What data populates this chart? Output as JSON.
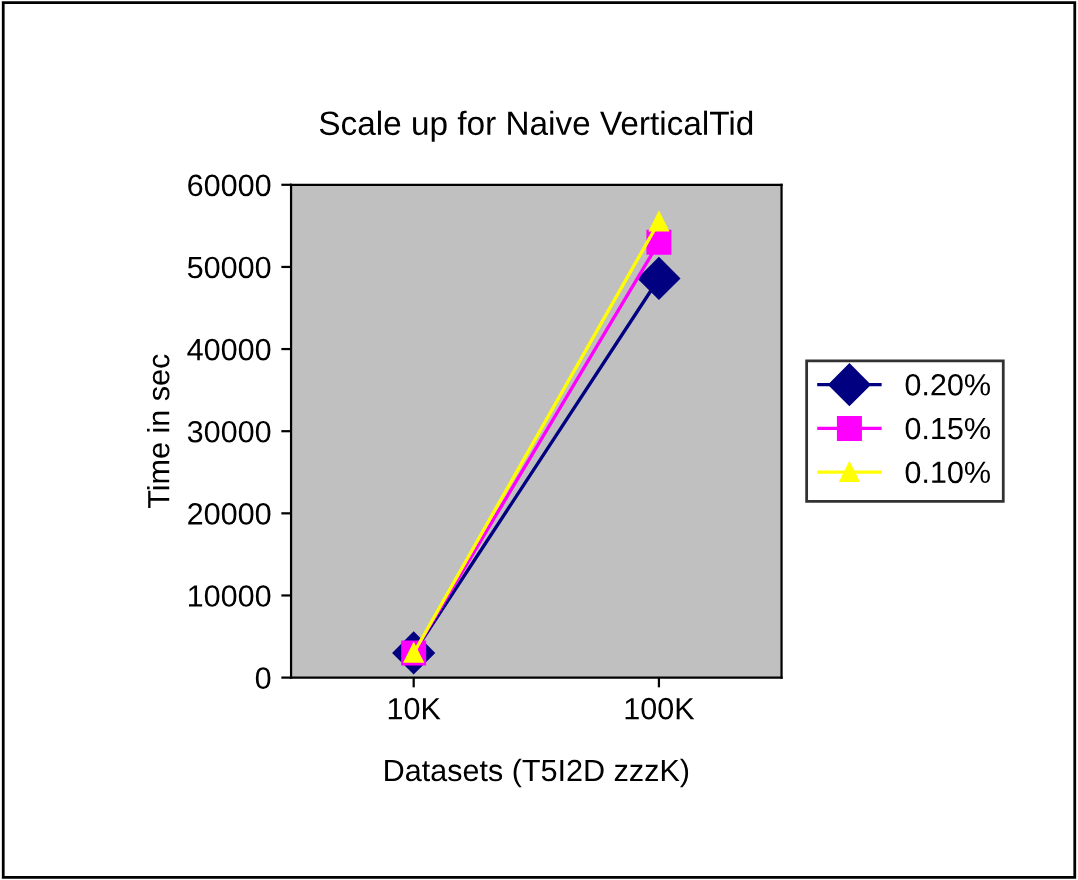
{
  "chart_data": {
    "type": "line",
    "title": "Scale up for Naive VerticalTid",
    "xlabel": "Datasets (T5I2D zzzK)",
    "ylabel": "Time in sec",
    "categories": [
      "10K",
      "100K"
    ],
    "series": [
      {
        "name": "0.20%",
        "color": "#000080",
        "values": [
          3000,
          48600
        ],
        "marker": "diamond"
      },
      {
        "name": "0.15%",
        "color": "#ff00ff",
        "values": [
          3000,
          53000
        ],
        "marker": "square"
      },
      {
        "name": "0.10%",
        "color": "#ffff00",
        "values": [
          3000,
          55500
        ],
        "marker": "triangle"
      }
    ],
    "ylim": [
      0,
      60000
    ],
    "yticks": [
      0,
      10000,
      20000,
      30000,
      40000,
      50000,
      60000
    ],
    "grid": false,
    "legend": "right"
  }
}
